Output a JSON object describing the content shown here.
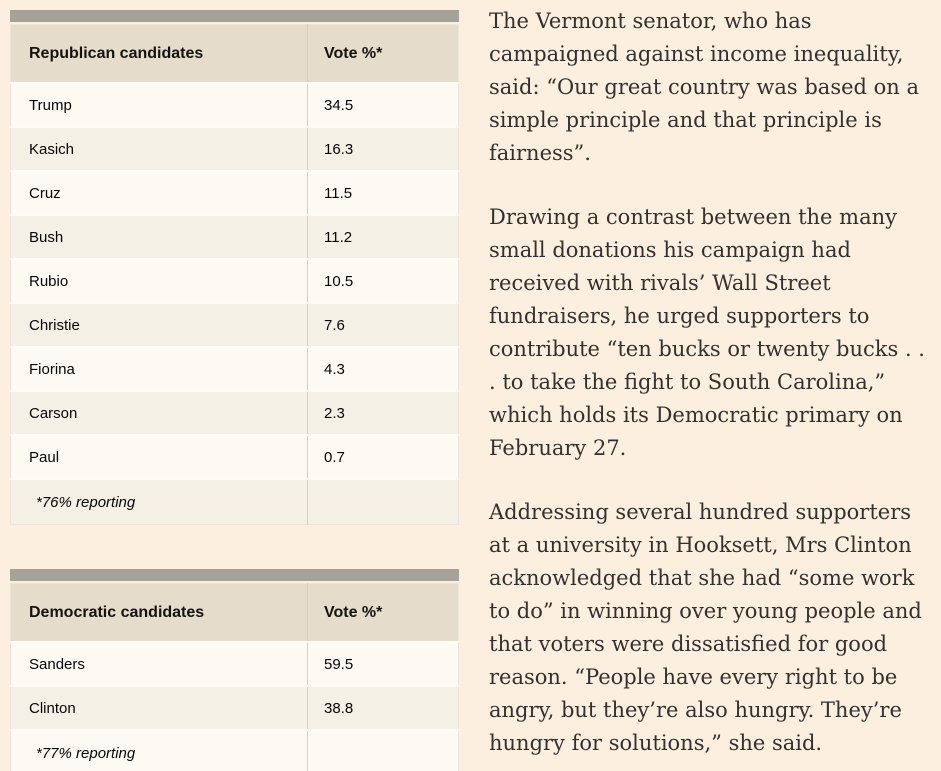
{
  "colors": {
    "page_background": "#fcefdf",
    "table_top_bar": "#a5a298",
    "table_header_background": "#e5dccb",
    "table_row_odd": "#fcfaf3",
    "table_row_even": "#f5f0e6",
    "article_text": "#33302e"
  },
  "tables": [
    {
      "name": "republican-results",
      "columns": [
        "Republican candidates",
        "Vote %*"
      ],
      "rows": [
        {
          "candidate": "Trump",
          "vote_pct": "34.5"
        },
        {
          "candidate": "Kasich",
          "vote_pct": "16.3"
        },
        {
          "candidate": "Cruz",
          "vote_pct": "11.5"
        },
        {
          "candidate": "Bush",
          "vote_pct": "11.2"
        },
        {
          "candidate": "Rubio",
          "vote_pct": "10.5"
        },
        {
          "candidate": "Christie",
          "vote_pct": "7.6"
        },
        {
          "candidate": "Fiorina",
          "vote_pct": "4.3"
        },
        {
          "candidate": "Carson",
          "vote_pct": "2.3"
        },
        {
          "candidate": "Paul",
          "vote_pct": "0.7"
        }
      ],
      "footnote": "*76% reporting"
    },
    {
      "name": "democratic-results",
      "columns": [
        "Democratic candidates",
        "Vote %*"
      ],
      "rows": [
        {
          "candidate": "Sanders",
          "vote_pct": "59.5"
        },
        {
          "candidate": "Clinton",
          "vote_pct": "38.8"
        }
      ],
      "footnote": "*77% reporting"
    }
  ],
  "article": {
    "paragraphs": [
      "The Vermont senator, who has campaigned against income inequality, said: “Our great country was based on a simple principle and that principle is fairness”.",
      "Drawing a contrast between the many small donations his campaign had received with rivals’ Wall Street fundraisers, he urged supporters to contribute “ten bucks or twenty bucks . . . to take the fight to South Carolina,” which holds its Democratic primary on February 27.",
      "Addressing several hundred supporters at a university in Hooksett, Mrs Clinton acknowledged that she had “some work to do” in winning over young people and that voters were dissatisfied for good reason. “People have every right to be angry, but they’re also hungry. They’re hungry for solutions,” she said."
    ]
  }
}
